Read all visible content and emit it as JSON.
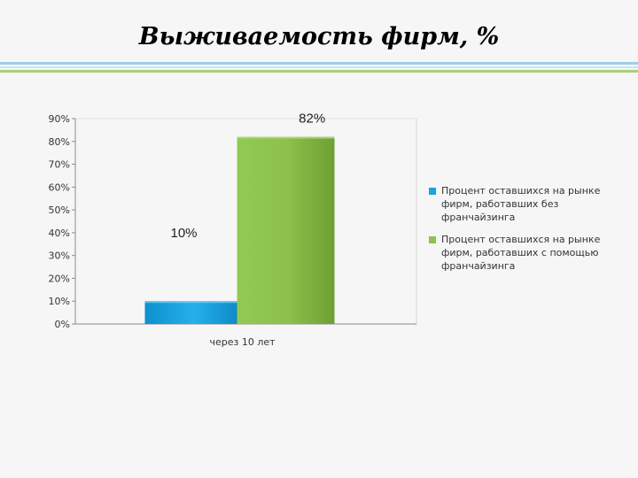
{
  "slide": {
    "title": "Выживаемость фирм, %"
  },
  "colors": {
    "series1": "#1aa3dd",
    "series2": "#8dc24c",
    "stripe_blue": "#9ecfea",
    "stripe_green": "#a5d07a"
  },
  "chart_data": {
    "type": "bar",
    "categories": [
      "через 10 лет"
    ],
    "series": [
      {
        "name": "Процент оставшихся на рынке фирм, работавших без франчайзинга",
        "values": [
          10
        ],
        "label": "10%"
      },
      {
        "name": "Процент оставшихся на рынке фирм, работавших с помощью франчайзинга",
        "values": [
          82
        ],
        "label": "82%"
      }
    ],
    "ylim": [
      0,
      90
    ],
    "yticks": [
      "0%",
      "10%",
      "20%",
      "30%",
      "40%",
      "50%",
      "60%",
      "70%",
      "80%",
      "90%"
    ],
    "grid": false,
    "legend": "right"
  }
}
